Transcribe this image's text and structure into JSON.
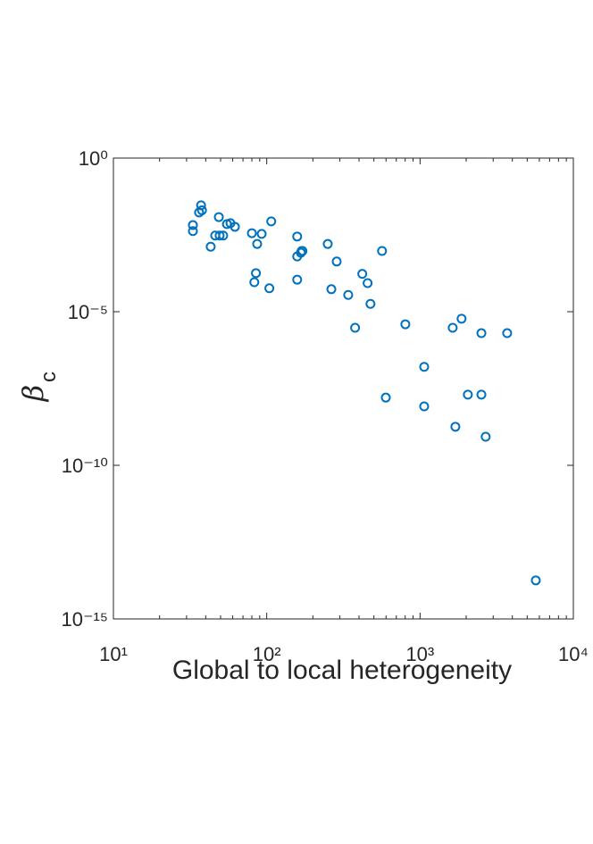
{
  "chart_data": {
    "type": "scatter",
    "xlabel": "Global to local heterogeneity",
    "ylabel": "β",
    "ylabel_subscript": "c",
    "color": "#0072bd",
    "xscale": "log",
    "yscale": "log",
    "xlim": [
      10,
      10000
    ],
    "ylim": [
      1e-15,
      1
    ],
    "xticks": [
      {
        "value": 10,
        "label": "10¹"
      },
      {
        "value": 100,
        "label": "10²"
      },
      {
        "value": 1000,
        "label": "10³"
      },
      {
        "value": 10000,
        "label": "10⁴"
      }
    ],
    "yticks": [
      {
        "value": 1e-15,
        "label": "10⁻¹⁵"
      },
      {
        "value": 1e-10,
        "label": "10⁻¹⁰"
      },
      {
        "value": 1e-05,
        "label": "10⁻⁵"
      },
      {
        "value": 1,
        "label": "10⁰"
      }
    ],
    "x": [
      33,
      33,
      37.3,
      37.8,
      36.2,
      48.7,
      43.1,
      46.1,
      49.3,
      52,
      55,
      58,
      62,
      80,
      86.6,
      92.7,
      107,
      85,
      83,
      104,
      158,
      158,
      167,
      169,
      171,
      158,
      250,
      286,
      264,
      340,
      420,
      455,
      475,
      565,
      377,
      802,
      1064,
      598,
      1064,
      1633,
      1866,
      2513,
      3700,
      2050,
      2513,
      1700,
      2680,
      5690
    ],
    "y": [
      0.0042,
      0.0066,
      0.029,
      0.02,
      0.017,
      0.012,
      0.0013,
      0.003,
      0.003,
      0.003,
      0.0071,
      0.0076,
      0.0058,
      0.0036,
      0.0016,
      0.0034,
      0.0087,
      0.00018,
      9.1e-05,
      5.8e-05,
      0.0028,
      0.00063,
      0.00083,
      0.00095,
      0.00095,
      0.00011,
      0.0016,
      0.00043,
      5.4e-05,
      3.5e-05,
      0.00017,
      8.5e-05,
      1.8e-05,
      0.00095,
      3e-06,
      3.9e-06,
      1.6e-07,
      1.6e-08,
      8.3e-09,
      3e-06,
      5.9e-06,
      2e-06,
      2e-06,
      2e-08,
      2e-08,
      1.8e-09,
      8.5e-10,
      1.8e-14
    ]
  }
}
